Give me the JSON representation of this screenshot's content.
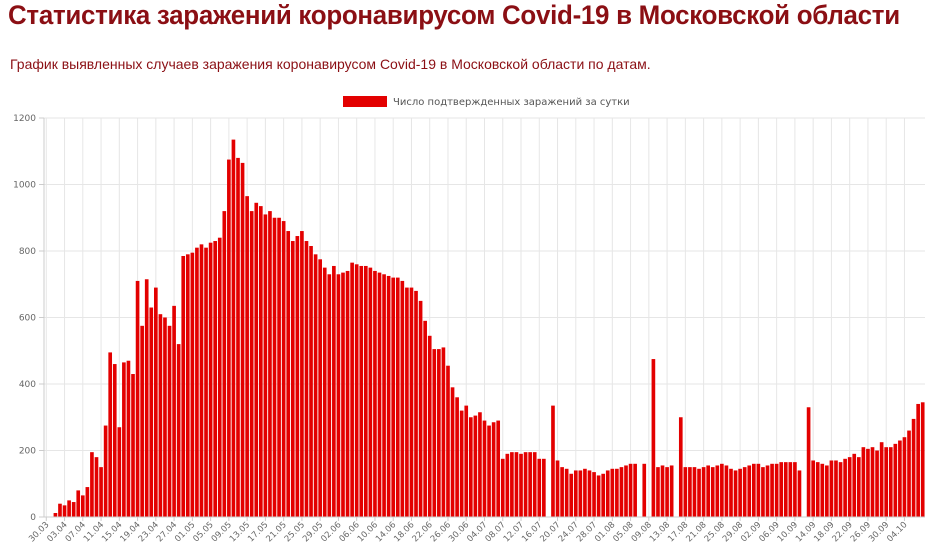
{
  "page": {
    "title": "Статистика заражений коронавирусом Covid-19 в Московской области",
    "subtitle": "График выявленных случаев заражения коронавирусом Covid-19 в Московской области по датам."
  },
  "colors": {
    "bar": "#e30000",
    "title": "#8b0f14",
    "grid": "#e6e6e6",
    "axis_text": "#666666"
  },
  "chart_data": {
    "type": "bar",
    "title": "",
    "xlabel": "",
    "ylabel": "",
    "ylim": [
      0,
      1200
    ],
    "y_ticks": [
      0,
      200,
      400,
      600,
      800,
      1000,
      1200
    ],
    "grid": true,
    "legend_position": "top-center",
    "x_tick_labels": [
      "30.03",
      "03.04",
      "07.04",
      "11.04",
      "15.04",
      "19.04",
      "23.04",
      "27.04",
      "01.05",
      "05.05",
      "09.05",
      "13.05",
      "17.05",
      "21.05",
      "25.05",
      "29.05",
      "02.06",
      "06.06",
      "10.06",
      "14.06",
      "18.06",
      "22.06",
      "26.06",
      "30.06",
      "04.07",
      "08.07",
      "12.07",
      "16.07",
      "20.07",
      "24.07",
      "28.07",
      "01.08",
      "05.08",
      "09.08",
      "13.08",
      "17.08",
      "21.08",
      "25.08",
      "29.08",
      "02.09",
      "06.09",
      "10.09",
      "14.09",
      "18.09",
      "22.09",
      "26.09",
      "30.09",
      "04.10"
    ],
    "series": [
      {
        "name": "Число подтвержденных заражений за сутки",
        "color": "#e30000",
        "values": [
          0,
          0,
          12,
          40,
          35,
          50,
          45,
          80,
          65,
          90,
          195,
          180,
          150,
          275,
          495,
          460,
          270,
          465,
          470,
          430,
          710,
          575,
          715,
          630,
          690,
          610,
          600,
          575,
          635,
          520,
          785,
          790,
          795,
          810,
          820,
          810,
          825,
          830,
          840,
          920,
          1075,
          1135,
          1080,
          1065,
          965,
          920,
          945,
          935,
          910,
          920,
          900,
          900,
          890,
          860,
          830,
          845,
          860,
          830,
          815,
          790,
          775,
          750,
          730,
          755,
          730,
          735,
          740,
          765,
          760,
          755,
          755,
          750,
          740,
          735,
          730,
          725,
          720,
          720,
          710,
          690,
          690,
          680,
          650,
          590,
          545,
          505,
          505,
          510,
          455,
          390,
          360,
          320,
          335,
          300,
          305,
          315,
          290,
          275,
          285,
          290,
          175,
          190,
          195,
          195,
          190,
          195,
          195,
          195,
          175,
          175,
          0,
          335,
          170,
          150,
          145,
          130,
          140,
          140,
          145,
          140,
          135,
          125,
          130,
          140,
          145,
          145,
          150,
          155,
          160,
          160,
          0,
          160,
          0,
          475,
          150,
          155,
          150,
          155,
          0,
          300,
          150,
          150,
          150,
          145,
          150,
          155,
          150,
          155,
          160,
          155,
          145,
          140,
          145,
          150,
          155,
          160,
          160,
          150,
          155,
          160,
          160,
          165,
          165,
          165,
          165,
          140,
          0,
          330,
          170,
          165,
          160,
          155,
          170,
          170,
          165,
          175,
          180,
          190,
          180,
          210,
          205,
          210,
          200,
          225,
          210,
          210,
          220,
          230,
          240,
          260,
          295,
          340,
          345
        ]
      }
    ]
  }
}
